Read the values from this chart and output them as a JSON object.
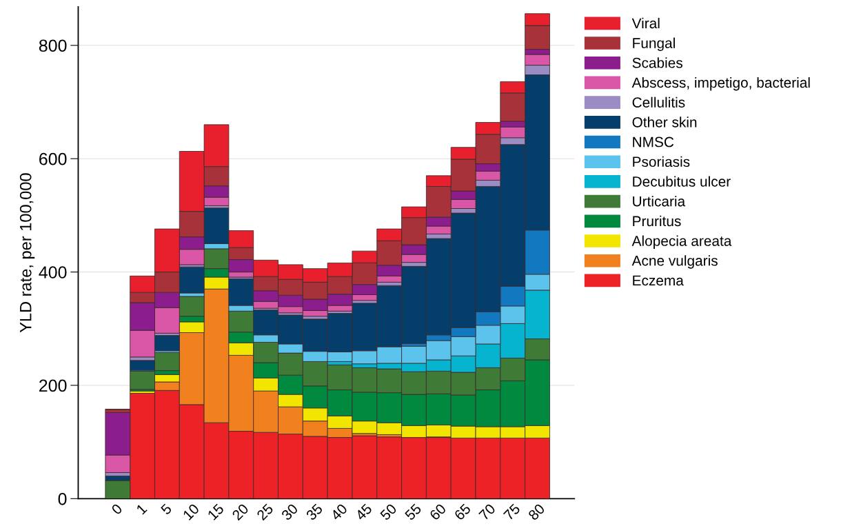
{
  "chart_data": {
    "type": "bar",
    "stacked": true,
    "ylabel": "YLD rate, per 100,000",
    "categories": [
      "0",
      "1",
      "5",
      "10",
      "15",
      "20",
      "25",
      "30",
      "35",
      "40",
      "45",
      "50",
      "55",
      "60",
      "65",
      "70",
      "75",
      "80"
    ],
    "ylim": [
      0,
      868
    ],
    "yticks": [
      0,
      200,
      400,
      600,
      800
    ],
    "grid": "y",
    "legend": "right",
    "series": [
      {
        "name": "Eczema",
        "color": "#ec2227",
        "values": [
          0,
          186,
          191,
          166,
          134,
          119,
          117,
          114,
          110,
          108,
          111,
          109,
          108,
          108,
          107,
          107,
          107,
          107
        ]
      },
      {
        "name": "Acne vulgaris",
        "color": "#f1801f",
        "values": [
          0,
          0,
          15,
          127,
          236,
          134,
          73,
          48,
          27,
          16,
          4,
          4,
          null,
          1,
          0,
          0,
          0,
          0
        ]
      },
      {
        "name": "Alopecia areata",
        "color": "#f2e600",
        "values": [
          0,
          4,
          13,
          19,
          21,
          22,
          23,
          22,
          23,
          22,
          22,
          21,
          21,
          21,
          21,
          20,
          20,
          22
        ]
      },
      {
        "name": "Pruritus",
        "color": "#00893f",
        "values": [
          0,
          3,
          7,
          10,
          15,
          19,
          27,
          34,
          39,
          46,
          51,
          53,
          55,
          55,
          55,
          65,
          81,
          116
        ]
      },
      {
        "name": "Urticaria",
        "color": "#3f7a36",
        "values": [
          32,
          32,
          32,
          35,
          35,
          37,
          36,
          39,
          43,
          44,
          43,
          42,
          40,
          40,
          40,
          39,
          40,
          37
        ]
      },
      {
        "name": "Decubitus ulcer",
        "color": "#07b4cf",
        "values": [
          0,
          0,
          0,
          0,
          0,
          0,
          0,
          0,
          0,
          6,
          7,
          10,
          15,
          20,
          29,
          42,
          61,
          86
        ]
      },
      {
        "name": "Psoriasis",
        "color": "#5bc3ec",
        "values": [
          0,
          0,
          3,
          6,
          9,
          10,
          13,
          16,
          18,
          17,
          23,
          29,
          30,
          34,
          34,
          33,
          31,
          28
        ]
      },
      {
        "name": "NMSC",
        "color": "#1278c0",
        "values": [
          0,
          2,
          0,
          0,
          0,
          0,
          0,
          0,
          0,
          0,
          0,
          0,
          5,
          10,
          16,
          24,
          35,
          78
        ]
      },
      {
        "name": "Other skin",
        "color": "#053e6b",
        "values": [
          8,
          17,
          27,
          46,
          63,
          47,
          44,
          51,
          57,
          68,
          84,
          108,
          136,
          170,
          202,
          221,
          250,
          274
        ]
      },
      {
        "name": "Cellulitis",
        "color": "#9b8cc4",
        "values": [
          6,
          6,
          4,
          4,
          4,
          3,
          3,
          4,
          5,
          4,
          5,
          6,
          7,
          8,
          8,
          11,
          12,
          17
        ]
      },
      {
        "name": "Abscess, impetigo, bacterial",
        "color": "#d957a6",
        "values": [
          31,
          47,
          45,
          27,
          15,
          9,
          12,
          11,
          10,
          10,
          10,
          11,
          14,
          14,
          16,
          16,
          19,
          19
        ]
      },
      {
        "name": "Scabies",
        "color": "#8b1d8c",
        "values": [
          75,
          49,
          27,
          22,
          20,
          22,
          19,
          20,
          20,
          20,
          18,
          19,
          17,
          16,
          15,
          13,
          10,
          9
        ]
      },
      {
        "name": "Fungal",
        "color": "#a8323a",
        "values": [
          5,
          18,
          36,
          45,
          34,
          21,
          25,
          28,
          30,
          31,
          38,
          43,
          48,
          54,
          56,
          52,
          50,
          42
        ]
      },
      {
        "name": "Viral",
        "color": "#e8202e",
        "values": [
          1,
          29,
          76,
          106,
          74,
          30,
          29,
          26,
          24,
          24,
          21,
          21,
          19,
          19,
          21,
          21,
          20,
          21
        ]
      }
    ]
  }
}
